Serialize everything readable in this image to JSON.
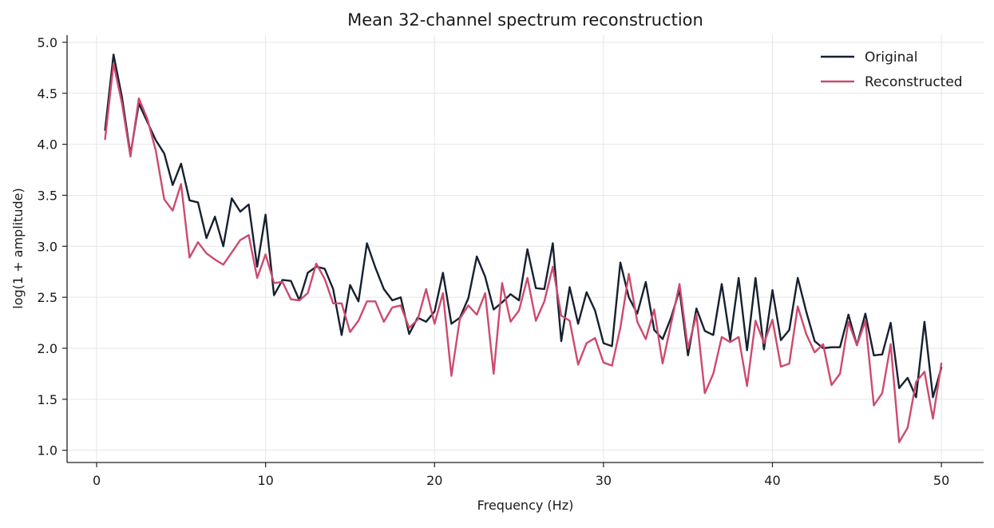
{
  "chart_data": {
    "type": "line",
    "title": "Mean 32-channel spectrum reconstruction",
    "xlabel": "Frequency (Hz)",
    "ylabel": "log(1 + amplitude)",
    "xlim": [
      -1.75,
      52.5
    ],
    "ylim": [
      0.88,
      5.07
    ],
    "xticks": [
      0,
      10,
      20,
      30,
      40,
      50
    ],
    "yticks": [
      1.0,
      1.5,
      2.0,
      2.5,
      3.0,
      3.5,
      4.0,
      4.5,
      5.0
    ],
    "xtick_labels": [
      "0",
      "10",
      "20",
      "30",
      "40",
      "50"
    ],
    "ytick_labels": [
      "1.0",
      "1.5",
      "2.0",
      "2.5",
      "3.0",
      "3.5",
      "4.0",
      "4.5",
      "5.0"
    ],
    "grid": true,
    "legend_position": "top-right",
    "x": [
      0.5,
      1.0,
      1.5,
      2.0,
      2.5,
      3.0,
      3.5,
      4.0,
      4.5,
      5.0,
      5.5,
      6.0,
      6.5,
      7.0,
      7.5,
      8.0,
      8.5,
      9.0,
      9.5,
      10.0,
      10.5,
      11.0,
      11.5,
      12.0,
      12.5,
      13.0,
      13.5,
      14.0,
      14.5,
      15.0,
      15.5,
      16.0,
      16.5,
      17.0,
      17.5,
      18.0,
      18.5,
      19.0,
      19.5,
      20.0,
      20.5,
      21.0,
      21.5,
      22.0,
      22.5,
      23.0,
      23.5,
      24.0,
      24.5,
      25.0,
      25.5,
      26.0,
      26.5,
      27.0,
      27.5,
      28.0,
      28.5,
      29.0,
      29.5,
      30.0,
      30.5,
      31.0,
      31.5,
      32.0,
      32.5,
      33.0,
      33.5,
      34.0,
      34.5,
      35.0,
      35.5,
      36.0,
      36.5,
      37.0,
      37.5,
      38.0,
      38.5,
      39.0,
      39.5,
      40.0,
      40.5,
      41.0,
      41.5,
      42.0,
      42.5,
      43.0,
      43.5,
      44.0,
      44.5,
      45.0,
      45.5,
      46.0,
      46.5,
      47.0,
      47.5,
      48.0,
      48.5,
      49.0,
      49.5,
      50.0
    ],
    "series": [
      {
        "name": "Original",
        "color": "#17202f",
        "values": [
          4.14,
          4.88,
          4.46,
          3.9,
          4.4,
          4.22,
          4.04,
          3.91,
          3.6,
          3.81,
          3.45,
          3.43,
          3.08,
          3.29,
          3.0,
          3.47,
          3.34,
          3.41,
          2.8,
          3.31,
          2.52,
          2.67,
          2.66,
          2.47,
          2.74,
          2.8,
          2.78,
          2.58,
          2.13,
          2.62,
          2.46,
          3.03,
          2.79,
          2.58,
          2.47,
          2.5,
          2.14,
          2.3,
          2.26,
          2.36,
          2.74,
          2.24,
          2.3,
          2.49,
          2.9,
          2.7,
          2.38,
          2.45,
          2.53,
          2.47,
          2.97,
          2.59,
          2.58,
          3.03,
          2.07,
          2.6,
          2.24,
          2.55,
          2.37,
          2.05,
          2.02,
          2.84,
          2.5,
          2.34,
          2.65,
          2.18,
          2.09,
          2.3,
          2.57,
          1.93,
          2.39,
          2.17,
          2.13,
          2.63,
          2.08,
          2.69,
          1.98,
          2.69,
          1.99,
          2.57,
          2.08,
          2.18,
          2.69,
          2.36,
          2.07,
          2.0,
          2.01,
          2.01,
          2.33,
          2.03,
          2.34,
          1.93,
          1.94,
          2.25,
          1.61,
          1.71,
          1.52,
          2.26,
          1.52,
          1.81
        ]
      },
      {
        "name": "Reconstructed",
        "color": "#cd4a6f",
        "values": [
          4.05,
          4.79,
          4.4,
          3.88,
          4.45,
          4.25,
          3.94,
          3.46,
          3.35,
          3.61,
          2.89,
          3.04,
          2.93,
          2.87,
          2.82,
          2.94,
          3.06,
          3.11,
          2.69,
          2.92,
          2.64,
          2.65,
          2.48,
          2.47,
          2.54,
          2.83,
          2.68,
          2.44,
          2.44,
          2.16,
          2.27,
          2.46,
          2.46,
          2.26,
          2.4,
          2.42,
          2.2,
          2.28,
          2.58,
          2.24,
          2.54,
          1.73,
          2.29,
          2.42,
          2.33,
          2.54,
          1.75,
          2.64,
          2.26,
          2.37,
          2.69,
          2.27,
          2.46,
          2.8,
          2.32,
          2.27,
          1.84,
          2.05,
          2.1,
          1.86,
          1.83,
          2.2,
          2.73,
          2.26,
          2.09,
          2.38,
          1.85,
          2.24,
          2.63,
          2.0,
          2.33,
          1.56,
          1.75,
          2.11,
          2.06,
          2.11,
          1.63,
          2.27,
          2.05,
          2.28,
          1.82,
          1.85,
          2.41,
          2.14,
          1.96,
          2.04,
          1.64,
          1.75,
          2.26,
          2.03,
          2.27,
          1.44,
          1.56,
          2.04,
          1.08,
          1.22,
          1.67,
          1.77,
          1.31,
          1.85
        ]
      }
    ]
  }
}
